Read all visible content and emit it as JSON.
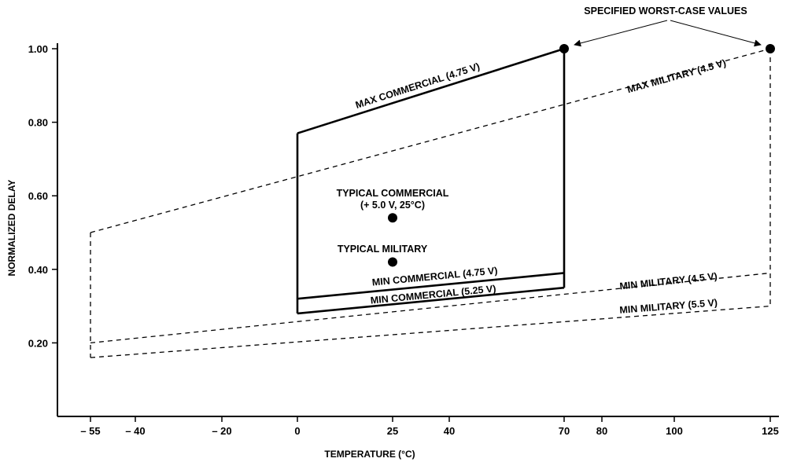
{
  "chart_data": {
    "type": "line",
    "xlabel": "TEMPERATURE (°C)",
    "ylabel": "NORMALIZED DELAY",
    "xlim": [
      -60,
      125
    ],
    "ylim": [
      0,
      1.0
    ],
    "x_ticks": [
      -55,
      -40,
      -20,
      0,
      25,
      40,
      70,
      80,
      100,
      125
    ],
    "x_tick_labels": [
      "– 55",
      "– 40",
      "– 20",
      "0",
      "25",
      "40",
      "70",
      "80",
      "100",
      "125"
    ],
    "y_ticks": [
      0.2,
      0.4,
      0.6,
      0.8,
      1.0
    ],
    "y_tick_labels": [
      "0.20",
      "0.40",
      "0.60",
      "0.80",
      "1.00"
    ],
    "grid": false,
    "series": [
      {
        "name": "MAX COMMERCIAL (4.75 V)",
        "style": "solid",
        "x": [
          0,
          70
        ],
        "y": [
          0.77,
          1.0
        ]
      },
      {
        "name": "MIN COMMERCIAL (4.75 V)",
        "style": "solid",
        "x": [
          0,
          70
        ],
        "y": [
          0.32,
          0.39
        ]
      },
      {
        "name": "MIN COMMERCIAL (5.25 V)",
        "style": "solid",
        "x": [
          0,
          70
        ],
        "y": [
          0.28,
          0.35
        ]
      },
      {
        "name": "MAX MILITARY (4.5 V)",
        "style": "dashed",
        "x": [
          -55,
          125
        ],
        "y": [
          0.5,
          1.0
        ]
      },
      {
        "name": "MIN MILITARY (4.5 V)",
        "style": "dashed",
        "x": [
          -55,
          125
        ],
        "y": [
          0.2,
          0.39
        ]
      },
      {
        "name": "MIN MILITARY (5.5 V)",
        "style": "dashed",
        "x": [
          -55,
          125
        ],
        "y": [
          0.16,
          0.3
        ]
      }
    ],
    "points": [
      {
        "label": "TYPICAL COMMERCIAL",
        "sublabel": "(+ 5.0 V, 25°C)",
        "x": 25,
        "y": 0.54
      },
      {
        "label": "TYPICAL MILITARY",
        "x": 25,
        "y": 0.42
      },
      {
        "label": "",
        "x": 70,
        "y": 1.0
      },
      {
        "label": "",
        "x": 125,
        "y": 1.0
      }
    ],
    "annotations": [
      {
        "text": "SPECIFIED WORST-CASE VALUES",
        "points_to": [
          [
            70,
            1.0
          ],
          [
            125,
            1.0
          ]
        ]
      }
    ]
  }
}
